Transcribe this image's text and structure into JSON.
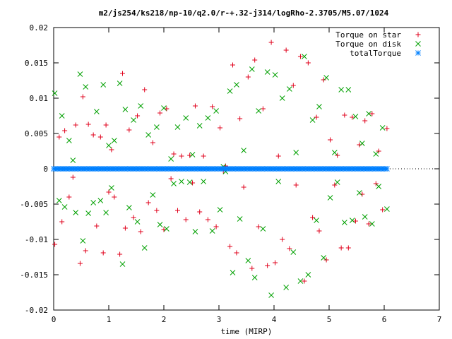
{
  "chart_data": {
    "type": "scatter",
    "title": "m2/js254/ks218/np-10/q2.0/r-+.32-j314/logRho-2.3705/M5.07/1024",
    "xlabel": "time (MIRP)",
    "ylabel": "",
    "xlim": [
      0,
      7
    ],
    "ylim": [
      -0.02,
      0.02
    ],
    "x_ticks": [
      "0",
      "1",
      "2",
      "3",
      "4",
      "5",
      "6",
      "7"
    ],
    "y_ticks": [
      "0.02",
      "0.015",
      "0.01",
      "0.005",
      "0",
      "-0.005",
      "-0.01",
      "-0.015",
      "-0.02"
    ],
    "legend_position": "top-right",
    "grid": false,
    "series": [
      {
        "name": "Torque on star",
        "marker": "plus",
        "color": "#e0001b",
        "points": [
          [
            0.02,
            -0.0107
          ],
          [
            0.1,
            0.0045
          ],
          [
            0.15,
            -0.0075
          ],
          [
            0.2,
            0.0054
          ],
          [
            0.28,
            -0.004
          ],
          [
            0.35,
            -0.0012
          ],
          [
            0.4,
            0.0062
          ],
          [
            0.48,
            -0.0134
          ],
          [
            0.53,
            0.0102
          ],
          [
            0.58,
            -0.0116
          ],
          [
            0.63,
            0.0063
          ],
          [
            0.72,
            0.0048
          ],
          [
            0.78,
            -0.0081
          ],
          [
            0.85,
            0.0045
          ],
          [
            0.9,
            -0.0119
          ],
          [
            0.95,
            0.0062
          ],
          [
            1.0,
            -0.0033
          ],
          [
            1.05,
            0.0027
          ],
          [
            1.1,
            -0.004
          ],
          [
            1.2,
            -0.0121
          ],
          [
            1.25,
            0.0135
          ],
          [
            1.3,
            -0.0084
          ],
          [
            1.37,
            0.0055
          ],
          [
            1.45,
            -0.0069
          ],
          [
            1.52,
            0.0075
          ],
          [
            1.58,
            -0.0089
          ],
          [
            1.65,
            0.0112
          ],
          [
            1.72,
            -0.0048
          ],
          [
            1.8,
            0.0037
          ],
          [
            1.87,
            -0.0059
          ],
          [
            1.93,
            0.0079
          ],
          [
            2.0,
            -0.0086
          ],
          [
            2.05,
            0.0085
          ],
          [
            2.13,
            -0.0014
          ],
          [
            2.18,
            0.0021
          ],
          [
            2.25,
            -0.0059
          ],
          [
            2.32,
            0.0018
          ],
          [
            2.4,
            -0.0072
          ],
          [
            2.47,
            0.0019
          ],
          [
            2.52,
            -0.002
          ],
          [
            2.57,
            0.0089
          ],
          [
            2.65,
            -0.0061
          ],
          [
            2.72,
            0.0018
          ],
          [
            2.8,
            -0.0072
          ],
          [
            2.88,
            0.0088
          ],
          [
            2.95,
            -0.0082
          ],
          [
            3.02,
            0.0058
          ],
          [
            3.08,
            -0.0003
          ],
          [
            3.12,
            0.0004
          ],
          [
            3.2,
            -0.011
          ],
          [
            3.25,
            0.0147
          ],
          [
            3.32,
            -0.0119
          ],
          [
            3.38,
            0.0071
          ],
          [
            3.45,
            -0.0026
          ],
          [
            3.53,
            0.013
          ],
          [
            3.6,
            -0.0141
          ],
          [
            3.65,
            0.0154
          ],
          [
            3.72,
            -0.0082
          ],
          [
            3.8,
            0.0085
          ],
          [
            3.88,
            -0.0137
          ],
          [
            3.95,
            0.0179
          ],
          [
            4.02,
            -0.0133
          ],
          [
            4.08,
            0.0018
          ],
          [
            4.15,
            -0.01
          ],
          [
            4.22,
            0.0168
          ],
          [
            4.28,
            -0.0113
          ],
          [
            4.35,
            0.0118
          ],
          [
            4.4,
            -0.0023
          ],
          [
            4.48,
            0.0159
          ],
          [
            4.55,
            -0.0159
          ],
          [
            4.62,
            0.015
          ],
          [
            4.7,
            -0.0069
          ],
          [
            4.77,
            0.0073
          ],
          [
            4.82,
            -0.0088
          ],
          [
            4.9,
            0.0126
          ],
          [
            4.95,
            -0.0129
          ],
          [
            5.02,
            0.0041
          ],
          [
            5.1,
            -0.0023
          ],
          [
            5.15,
            0.0019
          ],
          [
            5.22,
            -0.0112
          ],
          [
            5.28,
            0.0076
          ],
          [
            5.35,
            -0.0112
          ],
          [
            5.42,
            0.0073
          ],
          [
            5.48,
            -0.0074
          ],
          [
            5.55,
            0.0034
          ],
          [
            5.6,
            -0.0036
          ],
          [
            5.65,
            0.0068
          ],
          [
            5.72,
            -0.0078
          ],
          [
            5.78,
            0.0078
          ],
          [
            5.85,
            -0.0021
          ],
          [
            5.9,
            0.0025
          ],
          [
            5.97,
            -0.0058
          ],
          [
            6.05,
            0.0057
          ]
        ]
      },
      {
        "name": "Torque on disk",
        "marker": "cross",
        "color": "#00a000",
        "points": [
          [
            0.02,
            0.0107
          ],
          [
            0.1,
            -0.0045
          ],
          [
            0.15,
            0.0075
          ],
          [
            0.2,
            -0.0054
          ],
          [
            0.28,
            0.004
          ],
          [
            0.35,
            0.0012
          ],
          [
            0.4,
            -0.0062
          ],
          [
            0.48,
            0.0134
          ],
          [
            0.53,
            -0.0102
          ],
          [
            0.58,
            0.0116
          ],
          [
            0.63,
            -0.0063
          ],
          [
            0.72,
            -0.0048
          ],
          [
            0.78,
            0.0081
          ],
          [
            0.85,
            -0.0045
          ],
          [
            0.9,
            0.0119
          ],
          [
            0.95,
            -0.0062
          ],
          [
            1.0,
            0.0033
          ],
          [
            1.05,
            -0.0027
          ],
          [
            1.1,
            0.004
          ],
          [
            1.2,
            0.0121
          ],
          [
            1.25,
            -0.0135
          ],
          [
            1.3,
            0.0084
          ],
          [
            1.37,
            -0.0055
          ],
          [
            1.45,
            0.0069
          ],
          [
            1.52,
            -0.0075
          ],
          [
            1.58,
            0.0089
          ],
          [
            1.65,
            -0.0112
          ],
          [
            1.72,
            0.0048
          ],
          [
            1.8,
            -0.0037
          ],
          [
            1.87,
            0.0059
          ],
          [
            1.93,
            -0.0079
          ],
          [
            2.0,
            0.0086
          ],
          [
            2.05,
            -0.0085
          ],
          [
            2.13,
            0.0014
          ],
          [
            2.18,
            -0.0021
          ],
          [
            2.25,
            0.0059
          ],
          [
            2.32,
            -0.0018
          ],
          [
            2.4,
            0.0072
          ],
          [
            2.47,
            -0.0019
          ],
          [
            2.52,
            0.002
          ],
          [
            2.57,
            -0.0089
          ],
          [
            2.65,
            0.0061
          ],
          [
            2.72,
            -0.0018
          ],
          [
            2.8,
            0.0072
          ],
          [
            2.88,
            -0.0088
          ],
          [
            2.95,
            0.0082
          ],
          [
            3.02,
            -0.0058
          ],
          [
            3.08,
            0.0003
          ],
          [
            3.12,
            -0.0004
          ],
          [
            3.2,
            0.011
          ],
          [
            3.25,
            -0.0147
          ],
          [
            3.32,
            0.0119
          ],
          [
            3.38,
            -0.0071
          ],
          [
            3.45,
            0.0026
          ],
          [
            3.53,
            -0.013
          ],
          [
            3.6,
            0.0141
          ],
          [
            3.65,
            -0.0154
          ],
          [
            3.72,
            0.0082
          ],
          [
            3.8,
            -0.0085
          ],
          [
            3.88,
            0.0137
          ],
          [
            3.95,
            -0.0179
          ],
          [
            4.02,
            0.0133
          ],
          [
            4.08,
            -0.0018
          ],
          [
            4.15,
            0.01
          ],
          [
            4.22,
            -0.0168
          ],
          [
            4.28,
            0.0113
          ],
          [
            4.35,
            -0.0118
          ],
          [
            4.4,
            0.0023
          ],
          [
            4.48,
            -0.0159
          ],
          [
            4.55,
            0.0159
          ],
          [
            4.62,
            -0.015
          ],
          [
            4.7,
            0.0069
          ],
          [
            4.77,
            -0.0073
          ],
          [
            4.82,
            0.0088
          ],
          [
            4.9,
            -0.0126
          ],
          [
            4.95,
            0.0129
          ],
          [
            5.02,
            -0.0041
          ],
          [
            5.1,
            0.0023
          ],
          [
            5.15,
            -0.0019
          ],
          [
            5.22,
            0.0112
          ],
          [
            5.28,
            -0.0076
          ],
          [
            5.35,
            0.0112
          ],
          [
            5.42,
            -0.0073
          ],
          [
            5.48,
            0.0074
          ],
          [
            5.55,
            -0.0034
          ],
          [
            5.6,
            0.0036
          ],
          [
            5.65,
            -0.0068
          ],
          [
            5.72,
            0.0078
          ],
          [
            5.78,
            -0.0078
          ],
          [
            5.85,
            0.0021
          ],
          [
            5.9,
            -0.0025
          ],
          [
            5.97,
            0.0058
          ],
          [
            6.05,
            -0.0057
          ]
        ]
      },
      {
        "name": "totalTorque",
        "marker": "star",
        "color": "#0080ff",
        "x_start": 0.0,
        "x_end": 6.05,
        "count": 220,
        "value": 0
      }
    ]
  }
}
